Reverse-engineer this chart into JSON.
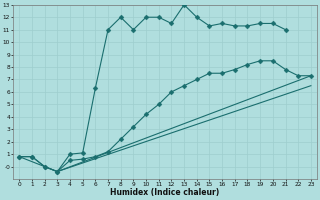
{
  "xlabel": "Humidex (Indice chaleur)",
  "background_color": "#b0dede",
  "grid_color": "#9ecece",
  "line_color": "#1a6e6e",
  "xlim": [
    -0.5,
    23.5
  ],
  "ylim": [
    -1,
    13
  ],
  "xticks": [
    0,
    1,
    2,
    3,
    4,
    5,
    6,
    7,
    8,
    9,
    10,
    11,
    12,
    13,
    14,
    15,
    16,
    17,
    18,
    19,
    20,
    21,
    22,
    23
  ],
  "yticks": [
    0,
    1,
    2,
    3,
    4,
    5,
    6,
    7,
    8,
    9,
    10,
    11,
    12,
    13
  ],
  "ytick_labels": [
    "-0",
    "1",
    "2",
    "3",
    "4",
    "5",
    "6",
    "7",
    "8",
    "9",
    "10",
    "11",
    "12",
    "13"
  ],
  "curve1_x": [
    0,
    1,
    2,
    3,
    4,
    5,
    6,
    7,
    8,
    9,
    10,
    11,
    12,
    13,
    14,
    15,
    16,
    17,
    18,
    19,
    20,
    21
  ],
  "curve1_y": [
    0.8,
    0.8,
    0.0,
    -0.4,
    1.0,
    1.1,
    6.3,
    11.0,
    12.0,
    11.0,
    12.0,
    12.0,
    11.5,
    13.0,
    12.0,
    11.3,
    11.5,
    11.3,
    11.3,
    11.5,
    11.5,
    11.0
  ],
  "curve2_x": [
    0,
    1,
    2,
    3,
    4,
    5,
    6,
    7,
    8,
    9,
    10,
    11,
    12,
    13,
    14,
    15,
    16,
    17,
    18,
    19,
    20,
    21,
    22,
    23
  ],
  "curve2_y": [
    0.8,
    0.8,
    0.0,
    -0.4,
    0.5,
    0.6,
    0.8,
    1.2,
    2.2,
    3.2,
    4.2,
    5.0,
    6.0,
    6.5,
    7.0,
    7.5,
    7.5,
    7.8,
    8.2,
    8.5,
    8.5,
    7.8,
    7.3,
    7.3
  ],
  "curve3_x": [
    0,
    2,
    3,
    23
  ],
  "curve3_y": [
    0.8,
    0.0,
    -0.4,
    7.3
  ],
  "curve4_x": [
    3,
    23
  ],
  "curve4_y": [
    -0.4,
    6.5
  ]
}
